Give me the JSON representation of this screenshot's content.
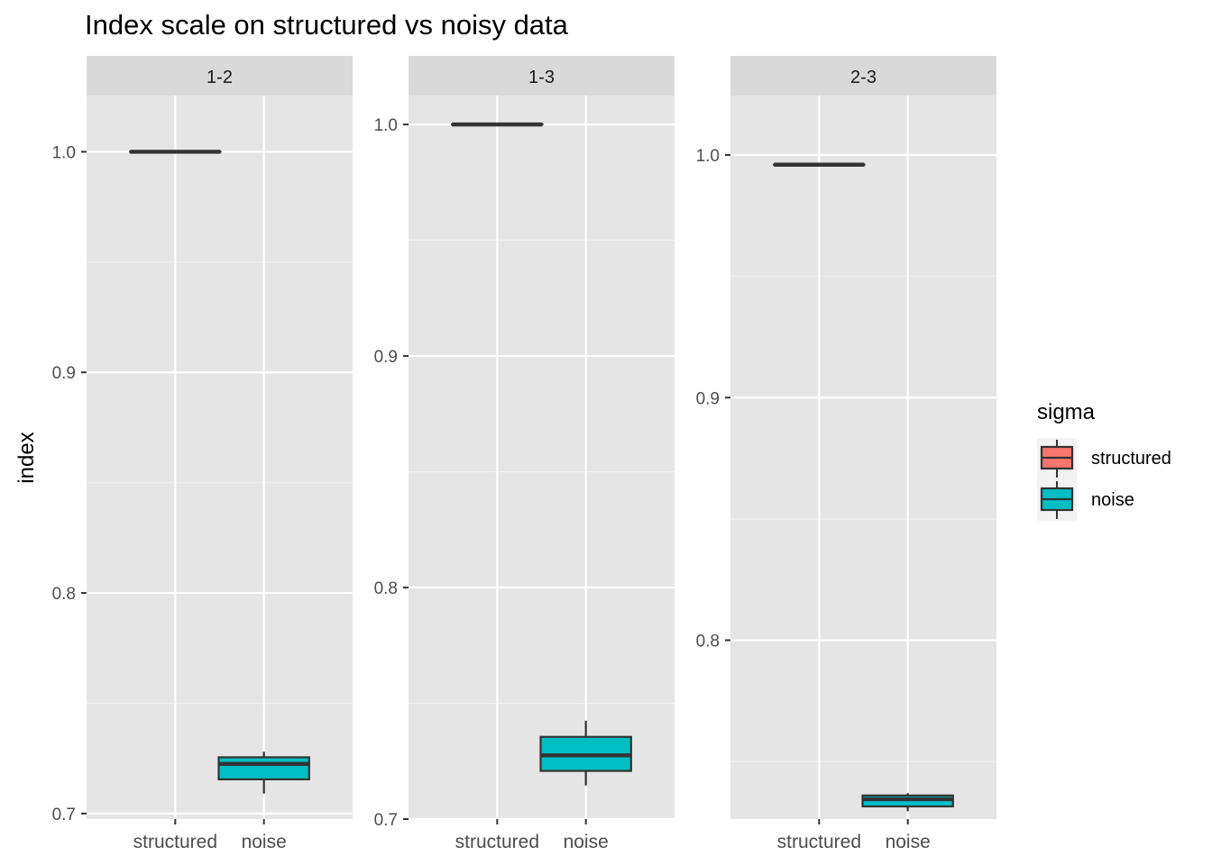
{
  "chart_data": {
    "type": "boxplot",
    "title": "Index scale on structured vs noisy data",
    "ylabel": "index",
    "xlabel": "",
    "categories": [
      "structured",
      "noise"
    ],
    "legend": {
      "title": "sigma",
      "position": "right",
      "entries": [
        {
          "label": "structured",
          "color": "#F8766D"
        },
        {
          "label": "noise",
          "color": "#00BFC4"
        }
      ]
    },
    "grid": true,
    "facets": [
      {
        "label": "1-2",
        "ylim": [
          0.6975,
          1.0255
        ],
        "yticks": [
          0.7,
          0.8,
          0.9,
          1.0
        ],
        "ytick_labels": [
          "0.7",
          "0.8",
          "0.9",
          "1.0"
        ],
        "boxes": [
          {
            "category": "structured",
            "min": 1.0,
            "q1": 1.0,
            "median": 1.0,
            "q3": 1.0,
            "max": 1.0
          },
          {
            "category": "noise",
            "min": 0.709,
            "q1": 0.7155,
            "median": 0.7225,
            "q3": 0.7255,
            "max": 0.728
          }
        ]
      },
      {
        "label": "1-3",
        "ylim": [
          0.7,
          1.0125
        ],
        "yticks": [
          0.7,
          0.8,
          0.9,
          1.0
        ],
        "ytick_labels": [
          "0.7",
          "0.8",
          "0.9",
          "1.0"
        ],
        "boxes": [
          {
            "category": "structured",
            "min": 1.0,
            "q1": 1.0,
            "median": 1.0,
            "q3": 1.0,
            "max": 1.0
          },
          {
            "category": "noise",
            "min": 0.7145,
            "q1": 0.7208,
            "median": 0.7275,
            "q3": 0.7355,
            "max": 0.7425
          }
        ]
      },
      {
        "label": "2-3",
        "ylim": [
          0.7263,
          1.0245
        ],
        "yticks": [
          0.8,
          0.9,
          1.0
        ],
        "ytick_labels": [
          "0.8",
          "0.9",
          "1.0"
        ],
        "boxes": [
          {
            "category": "structured",
            "min": 0.996,
            "q1": 0.996,
            "median": 0.996,
            "q3": 0.996,
            "max": 0.996
          },
          {
            "category": "noise",
            "min": 0.7295,
            "q1": 0.7315,
            "median": 0.7345,
            "q3": 0.736,
            "max": 0.737
          }
        ]
      }
    ]
  }
}
